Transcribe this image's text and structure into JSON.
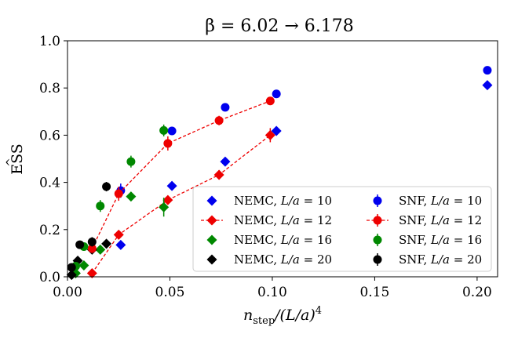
{
  "chart_data": {
    "type": "scatter",
    "title": "β = 6.02 → 6.178",
    "xlabel": "n_step/(L/a)^4",
    "xlabel_main": "n",
    "xlabel_sub": "step",
    "xlabel_rest": "/(L/a)",
    "xlabel_sup": "4",
    "ylabel": "ESS",
    "xlim": [
      0.0,
      0.21
    ],
    "ylim": [
      0.0,
      1.0
    ],
    "xticks": [
      0.0,
      0.05,
      0.1,
      0.15,
      0.2
    ],
    "xtick_labels": [
      "0.00",
      "0.05",
      "0.10",
      "0.15",
      "0.20"
    ],
    "yticks": [
      0.0,
      0.2,
      0.4,
      0.6,
      0.8,
      1.0
    ],
    "ytick_labels": [
      "0.0",
      "0.2",
      "0.4",
      "0.6",
      "0.8",
      "1.0"
    ],
    "grid": false,
    "legend_position": "bottom-right",
    "series": [
      {
        "name": "NEMC, L/a = 10",
        "method": "NEMC",
        "L": "10",
        "marker": "diamond",
        "color": "#0000ee",
        "line": false,
        "points": [
          [
            0.026,
            0.135,
            0.0
          ],
          [
            0.051,
            0.385,
            0.0
          ],
          [
            0.077,
            0.488,
            0.0
          ],
          [
            0.102,
            0.618,
            0.0
          ],
          [
            0.205,
            0.812,
            0.0
          ]
        ]
      },
      {
        "name": "NEMC, L/a = 12",
        "method": "NEMC",
        "L": "12",
        "marker": "diamond",
        "color": "#ee0000",
        "line": true,
        "points": [
          [
            0.012,
            0.015,
            0.0
          ],
          [
            0.025,
            0.178,
            0.0
          ],
          [
            0.049,
            0.325,
            0.0
          ],
          [
            0.074,
            0.432,
            0.02
          ],
          [
            0.099,
            0.6,
            0.03
          ]
        ]
      },
      {
        "name": "NEMC, L/a = 16",
        "method": "NEMC",
        "L": "16",
        "marker": "diamond",
        "color": "#008800",
        "line": false,
        "points": [
          [
            0.004,
            0.015,
            0.0
          ],
          [
            0.008,
            0.048,
            0.0
          ],
          [
            0.016,
            0.115,
            0.0
          ],
          [
            0.031,
            0.34,
            0.0
          ],
          [
            0.047,
            0.295,
            0.04
          ]
        ]
      },
      {
        "name": "NEMC, L/a = 20",
        "method": "NEMC",
        "L": "20",
        "marker": "diamond",
        "color": "#000000",
        "line": false,
        "points": [
          [
            0.002,
            0.008,
            0.0
          ],
          [
            0.005,
            0.068,
            0.0
          ],
          [
            0.012,
            0.115,
            0.0
          ],
          [
            0.019,
            0.14,
            0.0
          ]
        ]
      },
      {
        "name": "SNF, L/a = 10",
        "method": "SNF",
        "L": "10",
        "marker": "circle",
        "color": "#0000ee",
        "line": false,
        "points": [
          [
            0.026,
            0.365,
            0.03
          ],
          [
            0.051,
            0.618,
            0.0
          ],
          [
            0.077,
            0.718,
            0.0
          ],
          [
            0.102,
            0.775,
            0.0
          ],
          [
            0.205,
            0.875,
            0.0
          ]
        ]
      },
      {
        "name": "SNF, L/a = 12",
        "method": "SNF",
        "L": "12",
        "marker": "circle",
        "color": "#ee0000",
        "line": true,
        "points": [
          [
            0.012,
            0.12,
            0.02
          ],
          [
            0.025,
            0.352,
            0.03
          ],
          [
            0.049,
            0.565,
            0.03
          ],
          [
            0.074,
            0.662,
            0.02
          ],
          [
            0.099,
            0.745,
            0.0
          ]
        ]
      },
      {
        "name": "SNF, L/a = 16",
        "method": "SNF",
        "L": "16",
        "marker": "circle",
        "color": "#008800",
        "line": false,
        "points": [
          [
            0.004,
            0.045,
            0.0
          ],
          [
            0.008,
            0.128,
            0.0
          ],
          [
            0.016,
            0.3,
            0.025
          ],
          [
            0.031,
            0.488,
            0.025
          ],
          [
            0.047,
            0.62,
            0.025
          ]
        ]
      },
      {
        "name": "SNF, L/a = 20",
        "method": "SNF",
        "L": "20",
        "marker": "circle",
        "color": "#000000",
        "line": false,
        "points": [
          [
            0.002,
            0.04,
            0.0
          ],
          [
            0.006,
            0.136,
            0.0
          ],
          [
            0.012,
            0.148,
            0.02
          ],
          [
            0.019,
            0.382,
            0.02
          ]
        ]
      }
    ]
  }
}
